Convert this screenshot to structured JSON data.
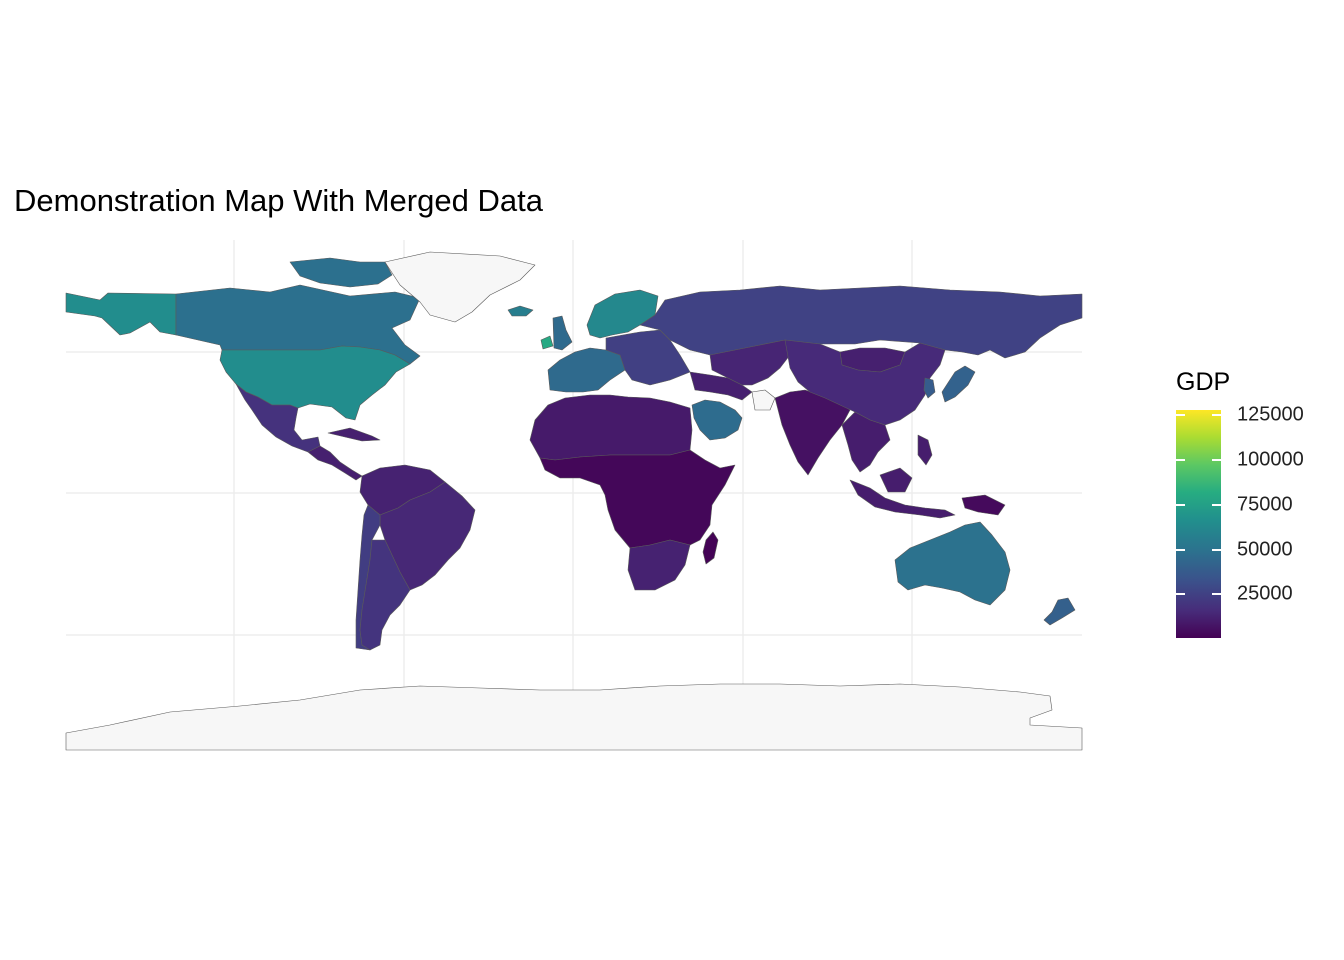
{
  "title": "Demonstration Map With Merged Data",
  "legend": {
    "title": "GDP",
    "ticks": [
      {
        "value": 125000,
        "label": "125000"
      },
      {
        "value": 100000,
        "label": "100000"
      },
      {
        "value": 75000,
        "label": "75000"
      },
      {
        "value": 50000,
        "label": "50000"
      },
      {
        "value": 25000,
        "label": "25000"
      }
    ],
    "min": 700,
    "max": 128000,
    "palette": "viridis"
  },
  "colors": {
    "no_data": "#f7f7f7",
    "border": "#5a5a5a",
    "grid": "#ebebeb"
  },
  "map_data": {
    "projection": "equirectangular",
    "fill_variable": "GDP",
    "regions": [
      {
        "name": "Alaska",
        "gdp": 63000
      },
      {
        "name": "Canada",
        "gdp": 48000
      },
      {
        "name": "United States",
        "gdp": 63000
      },
      {
        "name": "Greenland",
        "gdp": null
      },
      {
        "name": "Mexico",
        "gdp": 19000
      },
      {
        "name": "Central America",
        "gdp": 12000
      },
      {
        "name": "Brazil",
        "gdp": 15000
      },
      {
        "name": "Northern South America",
        "gdp": 13000
      },
      {
        "name": "Argentina",
        "gdp": 20000
      },
      {
        "name": "Chile",
        "gdp": 24000
      },
      {
        "name": "Western Europe",
        "gdp": 45000
      },
      {
        "name": "Scandinavia",
        "gdp": 60000
      },
      {
        "name": "Iceland",
        "gdp": 55000
      },
      {
        "name": "Ireland",
        "gdp": 78000
      },
      {
        "name": "Eastern Europe",
        "gdp": 25000
      },
      {
        "name": "Russia",
        "gdp": 26000
      },
      {
        "name": "North Africa",
        "gdp": 10000
      },
      {
        "name": "Sub-Saharan Africa",
        "gdp": 3000
      },
      {
        "name": "Southern Africa",
        "gdp": 13000
      },
      {
        "name": "Madagascar",
        "gdp": 1500
      },
      {
        "name": "Saudi Arabia",
        "gdp": 46000
      },
      {
        "name": "Iran",
        "gdp": null
      },
      {
        "name": "Middle East",
        "gdp": 12000
      },
      {
        "name": "Central Asia",
        "gdp": 14000
      },
      {
        "name": "India",
        "gdp": 6500
      },
      {
        "name": "China",
        "gdp": 16000
      },
      {
        "name": "Mongolia",
        "gdp": 12000
      },
      {
        "name": "Southeast Asia",
        "gdp": 11000
      },
      {
        "name": "Indonesia",
        "gdp": 11000
      },
      {
        "name": "Japan",
        "gdp": 41000
      },
      {
        "name": "Korea",
        "gdp": 38000
      },
      {
        "name": "Papua New Guinea",
        "gdp": 4000
      },
      {
        "name": "Australia",
        "gdp": 49000
      },
      {
        "name": "New Zealand",
        "gdp": 40000
      },
      {
        "name": "Antarctica",
        "gdp": null
      }
    ]
  }
}
